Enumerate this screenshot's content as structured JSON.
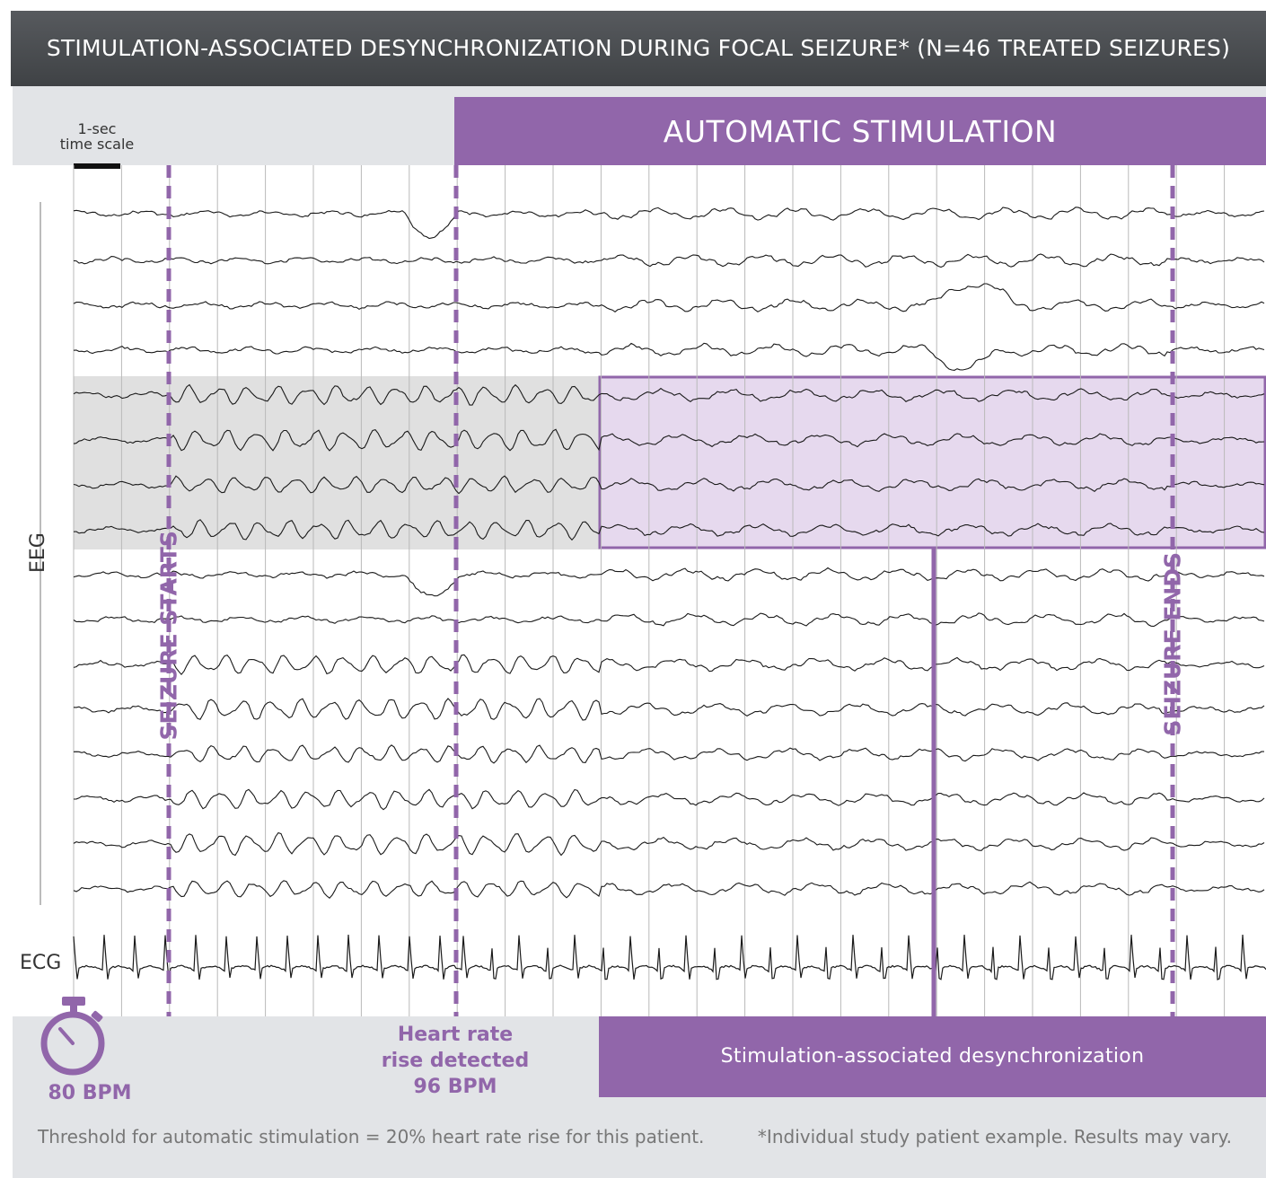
{
  "title": "STIMULATION-ASSOCIATED DESYNCHRONIZATION DURING FOCAL SEIZURE* (N=46 TREATED SEIZURES)",
  "header": {
    "time_scale_line1": "1-sec",
    "time_scale_line2": "time scale",
    "automatic_stimulation": "AUTOMATIC STIMULATION"
  },
  "axis_labels": {
    "eeg": "EEG",
    "ecg": "ECG"
  },
  "markers": {
    "seizure_starts": "SEIZURE STARTS",
    "seizure_ends": "SEIZURE ENDS",
    "heart_rate_line1": "Heart rate",
    "heart_rate_line2": "rise detected",
    "heart_rate_line3": "96 BPM",
    "baseline_bpm": "80 BPM"
  },
  "desync_label": "Stimulation-associated desynchronization",
  "footnotes": {
    "left": "Threshold for automatic stimulation = 20% heart rate rise for this patient.",
    "right": "*Individual study patient example. Results may vary."
  },
  "icons": {
    "stopwatch": "stopwatch-icon"
  },
  "colors": {
    "accent": "#9166aa",
    "header_bg": "#4a4d50",
    "gray_highlight": "#e0e0e0",
    "purple_highlight": "#e6d9ee"
  }
}
